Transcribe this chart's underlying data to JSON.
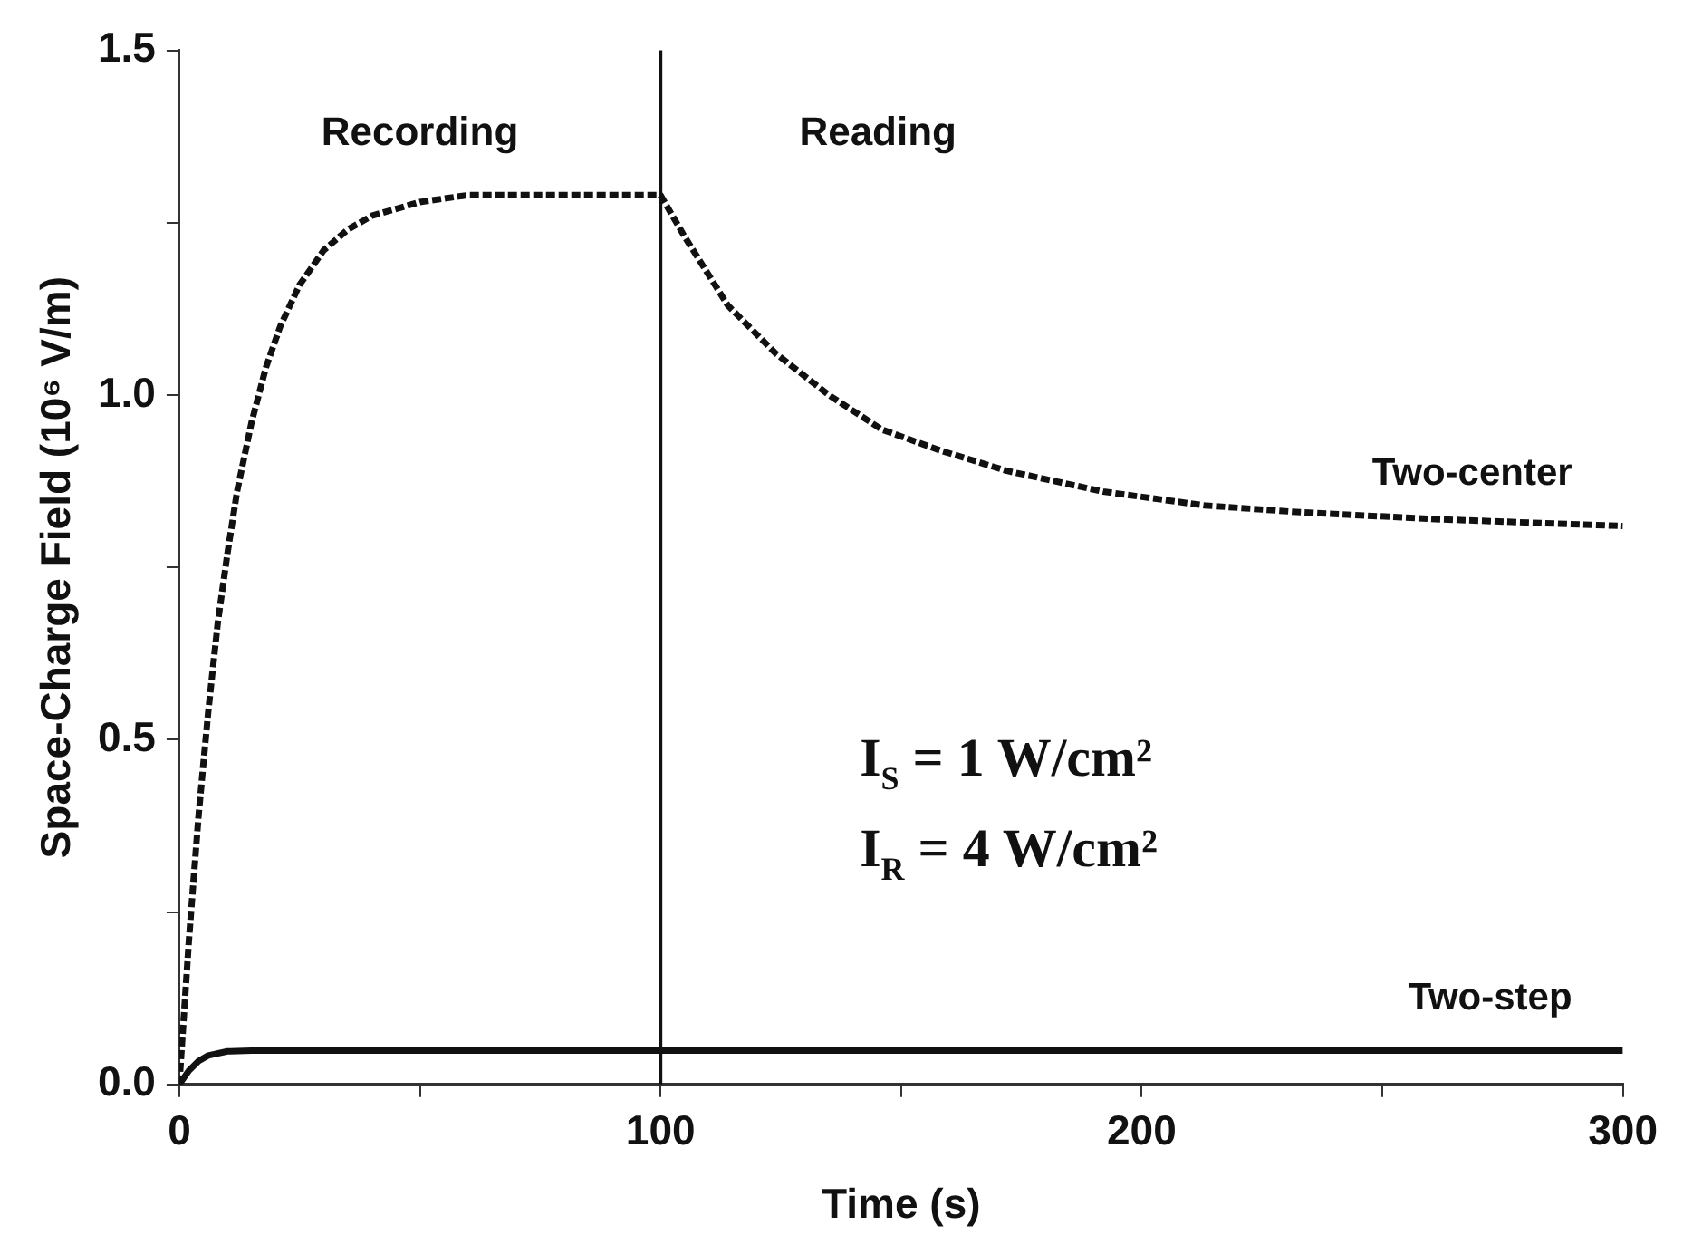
{
  "chart_data": {
    "type": "line",
    "xlabel": "Time (s)",
    "ylabel": "Space-Charge Field (10⁶ V/m)",
    "xlim": [
      0,
      300
    ],
    "xticks": [
      0,
      {
        "value": 50,
        "label": null
      },
      100,
      {
        "value": 150,
        "label": null
      },
      200,
      {
        "value": 250,
        "label": null
      },
      300
    ],
    "ylim": [
      0,
      1.5
    ],
    "yticks": [
      {
        "value": 0,
        "label": "0.0"
      },
      {
        "value": 0.25,
        "label": null
      },
      0.5,
      {
        "value": 0.75,
        "label": null
      },
      {
        "value": 1,
        "label": "1.0"
      },
      {
        "value": 1.25,
        "label": null
      },
      1.5
    ],
    "grid": false,
    "legend": false,
    "marker": "none",
    "series": [
      {
        "name": "Two-center",
        "color": "#111111",
        "line_style": "dashed",
        "x": [
          0,
          2,
          4,
          6,
          8,
          10,
          12,
          15,
          18,
          21,
          25,
          30,
          35,
          40,
          50,
          60,
          70,
          80,
          100,
          105,
          114,
          124,
          135,
          146,
          158,
          172,
          192,
          213,
          233,
          261,
          300
        ],
        "values": [
          0,
          0.21,
          0.39,
          0.54,
          0.67,
          0.77,
          0.86,
          0.96,
          1.04,
          1.1,
          1.16,
          1.21,
          1.24,
          1.26,
          1.28,
          1.29,
          1.29,
          1.29,
          1.29,
          1.23,
          1.13,
          1.06,
          1.0,
          0.95,
          0.92,
          0.89,
          0.86,
          0.84,
          0.83,
          0.82,
          0.81
        ]
      },
      {
        "name": "Two-step",
        "color": "#111111",
        "line_style": "solid",
        "x": [
          0,
          2,
          4,
          6,
          10,
          15,
          100,
          200,
          300
        ],
        "values": [
          0,
          0.02,
          0.034,
          0.042,
          0.048,
          0.049,
          0.049,
          0.049,
          0.049
        ]
      }
    ],
    "ref_lines": [
      {
        "axis": "x",
        "value": 100,
        "color": "#111111"
      }
    ],
    "annotations": [
      "Recording",
      "Reading",
      "I$_{S}$ = 1 W/cm²",
      "I$_{R}$ = 4 W/cm²"
    ]
  }
}
